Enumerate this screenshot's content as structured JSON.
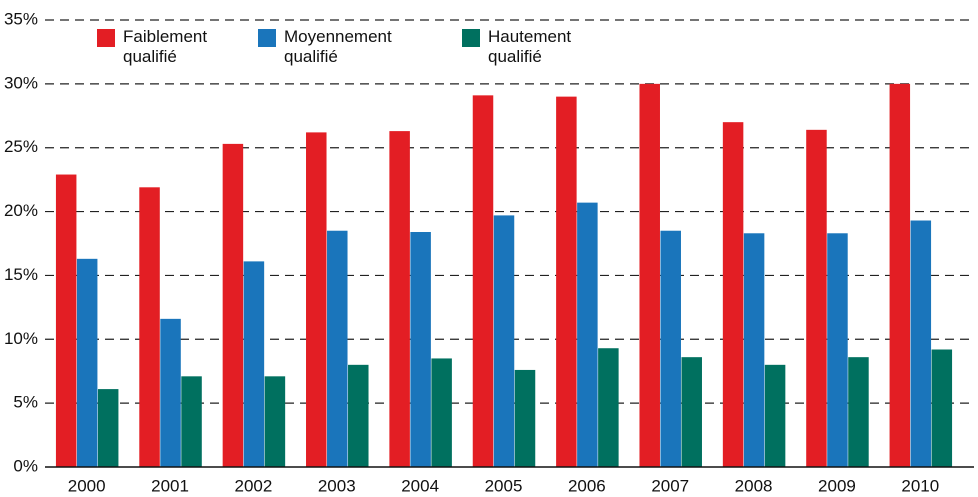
{
  "chart_data": {
    "type": "bar",
    "categories": [
      "2000",
      "2001",
      "2002",
      "2003",
      "2004",
      "2005",
      "2006",
      "2007",
      "2008",
      "2009",
      "2010"
    ],
    "series": [
      {
        "name": "Faiblement qualifié",
        "color": "#e31e24",
        "values": [
          22.9,
          21.9,
          25.3,
          26.2,
          26.3,
          29.1,
          29.0,
          30.0,
          27.0,
          26.4,
          30.0
        ]
      },
      {
        "name": "Moyennement qualifié",
        "color": "#1a75bb",
        "values": [
          16.3,
          11.6,
          16.1,
          18.5,
          18.4,
          19.7,
          20.7,
          18.5,
          18.3,
          18.3,
          19.3
        ]
      },
      {
        "name": "Hautement qualifié",
        "color": "#00705f",
        "values": [
          6.1,
          7.1,
          7.1,
          8.0,
          8.5,
          7.6,
          9.3,
          8.6,
          8.0,
          8.6,
          9.2
        ]
      }
    ],
    "ylim": [
      0,
      35
    ],
    "yticks": [
      {
        "value": 0,
        "label": "0%"
      },
      {
        "value": 5,
        "label": "5%"
      },
      {
        "value": 10,
        "label": "10%"
      },
      {
        "value": 15,
        "label": "15%"
      },
      {
        "value": 20,
        "label": "20%"
      },
      {
        "value": 25,
        "label": "25%"
      },
      {
        "value": 30,
        "label": "30%"
      },
      {
        "value": 35,
        "label": "35%"
      }
    ],
    "grid": true
  }
}
